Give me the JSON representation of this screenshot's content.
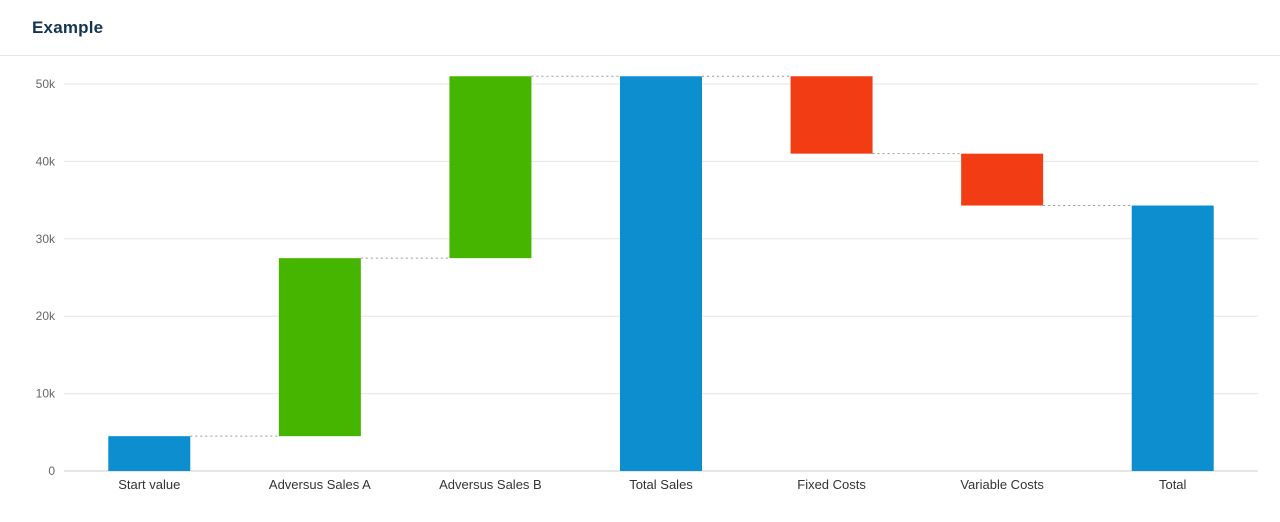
{
  "header": {
    "title": "Example"
  },
  "colors": {
    "positive": "#46b500",
    "negative": "#f23c14",
    "total": "#0d8ecf",
    "connector": "#999999",
    "gridline": "#e6e6e6",
    "axis_line": "#cccccc",
    "y_label": "#666666",
    "x_label": "#333333",
    "title": "#15354f"
  },
  "chart_data": {
    "type": "waterfall",
    "title": "Example",
    "categories": [
      "Start value",
      "Adversus Sales A",
      "Adversus Sales B",
      "Total Sales",
      "Fixed Costs",
      "Variable Costs",
      "Total"
    ],
    "points": [
      {
        "label": "Start value",
        "value": 4500,
        "kind": "total"
      },
      {
        "label": "Adversus Sales A",
        "value": 23000,
        "kind": "positive"
      },
      {
        "label": "Adversus Sales B",
        "value": 23500,
        "kind": "positive"
      },
      {
        "label": "Total Sales",
        "value": 51000,
        "kind": "total"
      },
      {
        "label": "Fixed Costs",
        "value": -10000,
        "kind": "negative"
      },
      {
        "label": "Variable Costs",
        "value": -6700,
        "kind": "negative"
      },
      {
        "label": "Total",
        "value": 34300,
        "kind": "total"
      }
    ],
    "cumulative": [
      4500,
      27500,
      51000,
      51000,
      41000,
      34300,
      34300
    ],
    "y_ticks": [
      "0",
      "10k",
      "20k",
      "30k",
      "40k",
      "50k"
    ],
    "y_tick_values": [
      0,
      10000,
      20000,
      30000,
      40000,
      50000
    ],
    "ylim": [
      0,
      53000
    ],
    "grid": true,
    "legend": "none",
    "connector_style": "dotted"
  }
}
